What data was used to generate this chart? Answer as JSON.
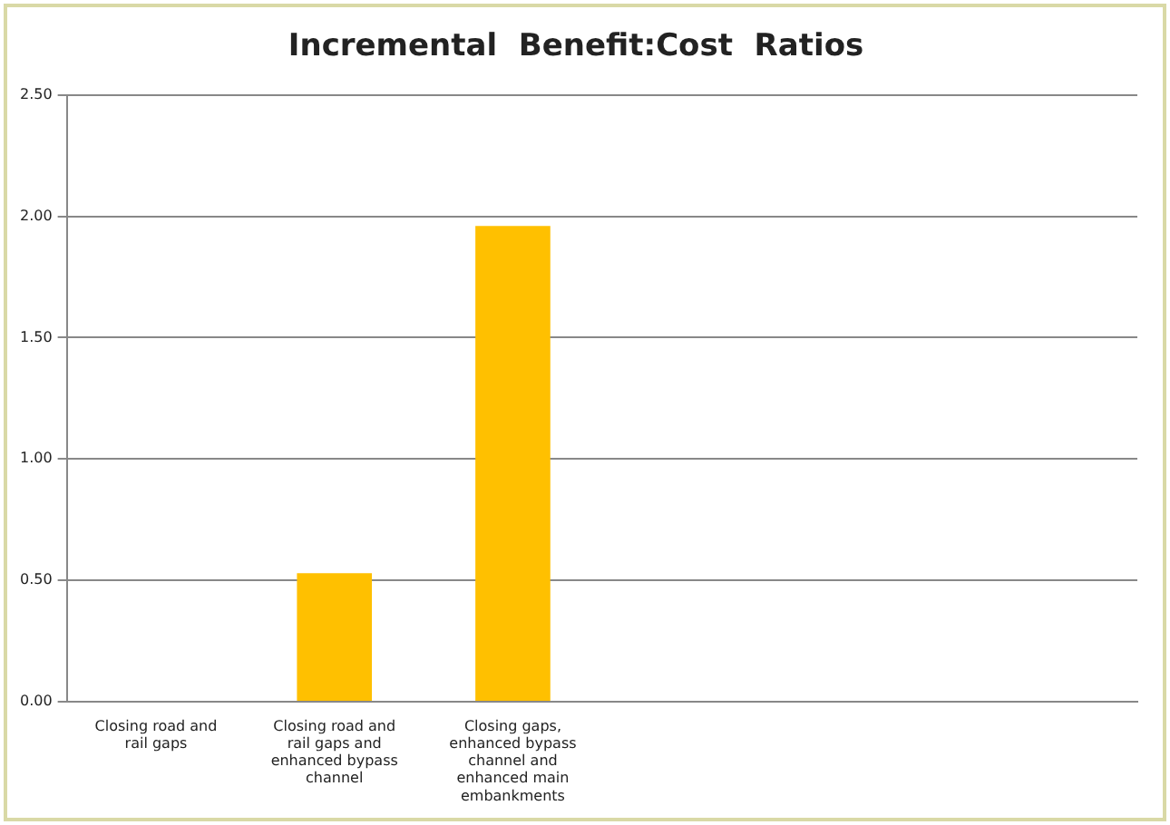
{
  "chart_data": {
    "type": "bar",
    "title": "Incremental  Benefit:Cost  Ratios",
    "categories": [
      "Closing road and rail gaps",
      "Closing road and rail gaps and enhanced bypass channel",
      "Closing gaps, enhanced bypass channel and enhanced main embankments",
      null,
      null,
      null
    ],
    "values": [
      null,
      0.53,
      1.96,
      null,
      null,
      null
    ],
    "color": "#ffc000",
    "ylim": [
      0,
      2.5
    ],
    "yticks": [
      {
        "value": 0,
        "label": "0.00"
      },
      {
        "value": 0.5,
        "label": "0.50"
      },
      {
        "value": 1,
        "label": "1.00"
      },
      {
        "value": 1.5,
        "label": "1.50"
      },
      {
        "value": 2,
        "label": "2.00"
      },
      {
        "value": 2.5,
        "label": "2.50"
      }
    ],
    "grid": "y",
    "legend": false
  }
}
